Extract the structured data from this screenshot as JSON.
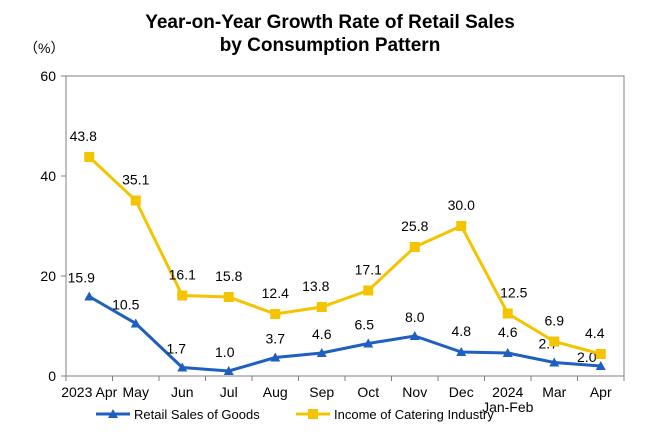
{
  "chart_data": {
    "type": "line",
    "title_lines": [
      "Year-on-Year Growth Rate of Retail Sales",
      "by Consumption Pattern"
    ],
    "unit_label": "（%）",
    "categories": [
      "2023 Apr",
      "May",
      "Jun",
      "Jul",
      "Aug",
      "Sep",
      "Oct",
      "Nov",
      "Dec",
      "2024",
      "Mar",
      "Apr"
    ],
    "category_sublabels": [
      "",
      "",
      "",
      "",
      "",
      "",
      "",
      "",
      "",
      "Jan-Feb",
      "",
      ""
    ],
    "ylim": [
      0,
      60
    ],
    "yticks": [
      "0",
      "20",
      "40",
      "60"
    ],
    "grid": false,
    "legend_position": "bottom",
    "series": [
      {
        "name": "Retail Sales of Goods",
        "color": "#1f5fbf",
        "marker": "triangle",
        "values": [
          15.9,
          10.5,
          1.7,
          1.0,
          3.7,
          4.6,
          6.5,
          8.0,
          4.8,
          4.6,
          2.7,
          2.0
        ],
        "labels": [
          "15.9",
          "10.5",
          "1.7",
          "1.0",
          "3.7",
          "4.6",
          "6.5",
          "8.0",
          "4.8",
          "4.6",
          "2.7",
          "2.0"
        ]
      },
      {
        "name": "Income of Catering Industry",
        "color": "#f5c400",
        "marker": "square",
        "values": [
          43.8,
          35.1,
          16.1,
          15.8,
          12.4,
          13.8,
          17.1,
          25.8,
          30.0,
          12.5,
          6.9,
          4.4
        ],
        "labels": [
          "43.8",
          "35.1",
          "16.1",
          "15.8",
          "12.4",
          "13.8",
          "17.1",
          "25.8",
          "30.0",
          "12.5",
          "6.9",
          "4.4"
        ]
      }
    ]
  }
}
